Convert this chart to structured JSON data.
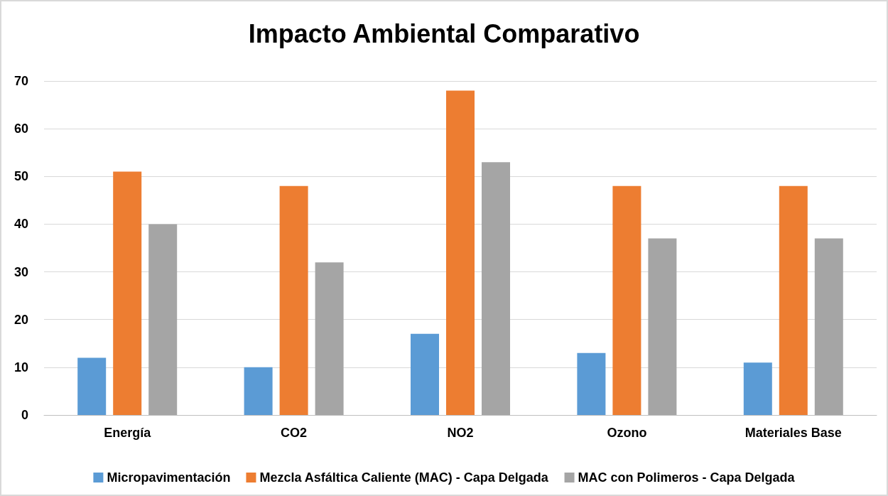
{
  "chart_data": {
    "type": "bar",
    "title": "Impacto Ambiental Comparativo",
    "categories": [
      "Energía",
      "CO2",
      "NO2",
      "Ozono",
      "Materiales Base"
    ],
    "series": [
      {
        "name": "Micropavimentación",
        "color": "#5b9bd5",
        "values": [
          12,
          10,
          17,
          13,
          11
        ]
      },
      {
        "name": "Mezcla Asfáltica Caliente (MAC) - Capa Delgada",
        "color": "#ed7d31",
        "values": [
          51,
          48,
          68,
          48,
          48
        ]
      },
      {
        "name": "MAC con Polimeros - Capa Delgada",
        "color": "#a5a5a5",
        "values": [
          40,
          32,
          53,
          37,
          37
        ]
      }
    ],
    "ylim": [
      0,
      70
    ],
    "yticks": [
      0,
      10,
      20,
      30,
      40,
      50,
      60,
      70
    ],
    "grid": "y",
    "legend": "bottom"
  }
}
